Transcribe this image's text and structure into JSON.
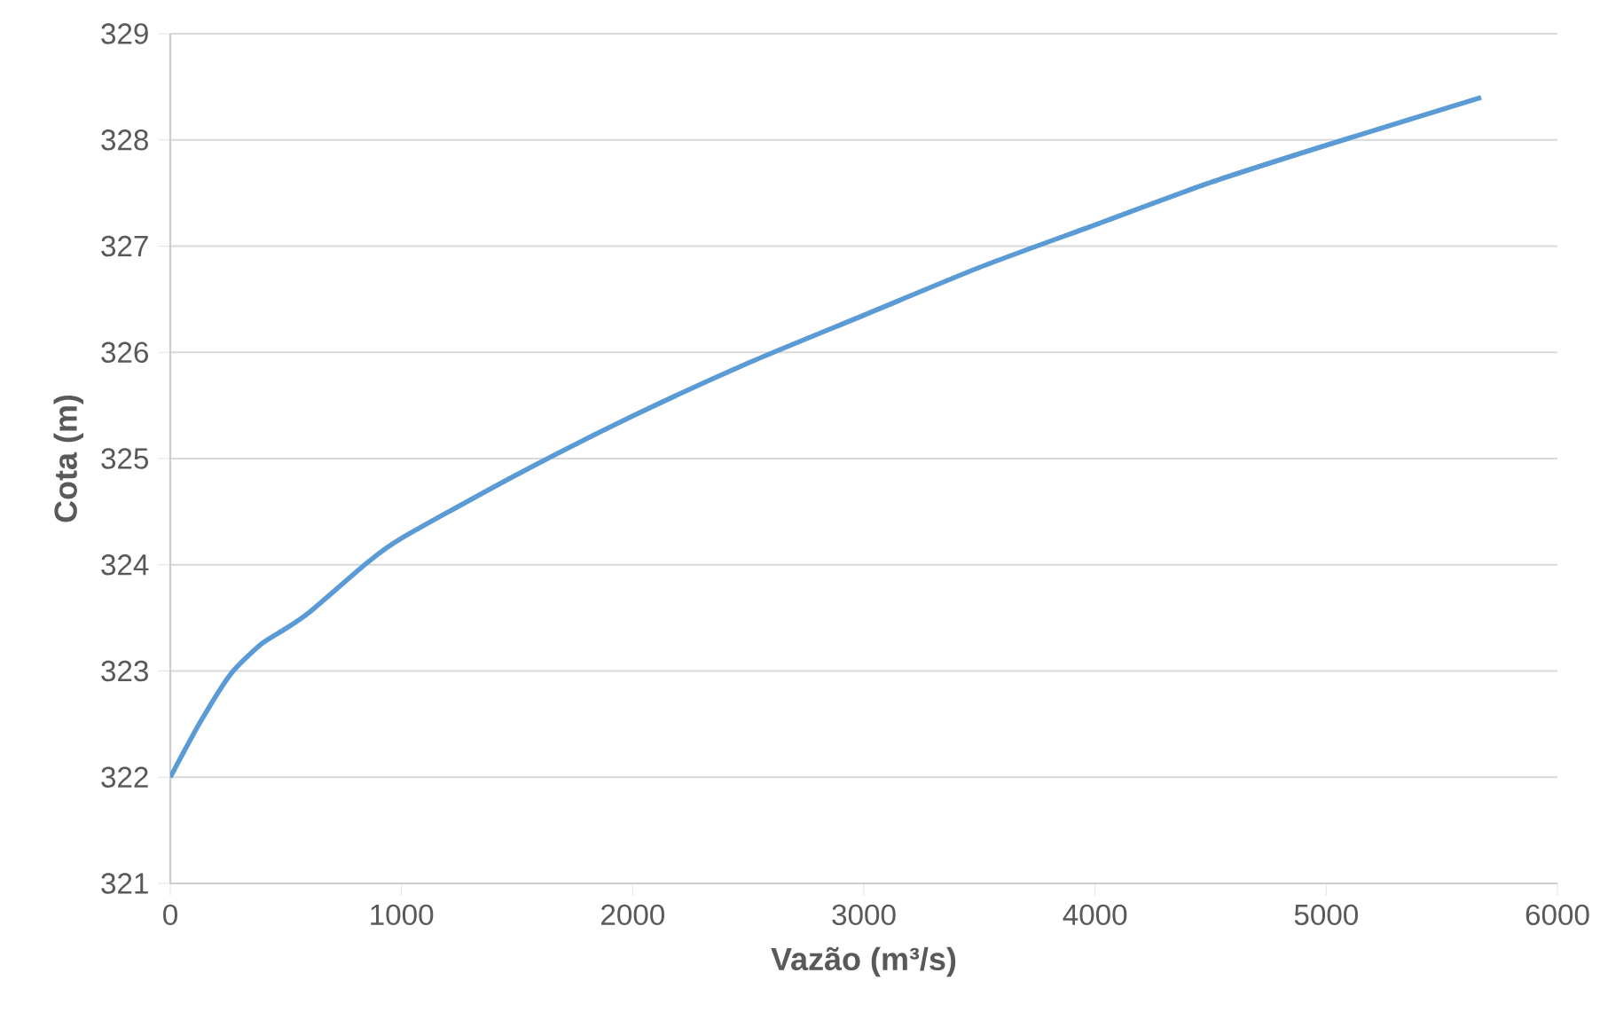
{
  "chart_data": {
    "type": "line",
    "xlabel": "Vazão (m³/s)",
    "ylabel": "Cota (m)",
    "series": [
      {
        "color": "#5b9bd5",
        "x": [
          0,
          130,
          261,
          391,
          500,
          600,
          852,
          1000,
          1500,
          2000,
          2500,
          3000,
          3500,
          4000,
          4500,
          5000,
          5670
        ],
        "values": [
          322.0,
          322.52,
          322.97,
          323.25,
          323.4,
          323.55,
          324.02,
          324.25,
          324.85,
          325.4,
          325.9,
          326.35,
          326.8,
          327.2,
          327.6,
          327.95,
          328.4
        ]
      }
    ],
    "xlim": [
      0,
      6000
    ],
    "xticks": [
      0,
      1000,
      2000,
      3000,
      4000,
      5000,
      6000
    ],
    "ylim": [
      321,
      329
    ],
    "yticks": [
      321,
      322,
      323,
      324,
      325,
      326,
      327,
      328,
      329
    ],
    "grid": "y",
    "marker": "none",
    "line_style": "solid"
  }
}
